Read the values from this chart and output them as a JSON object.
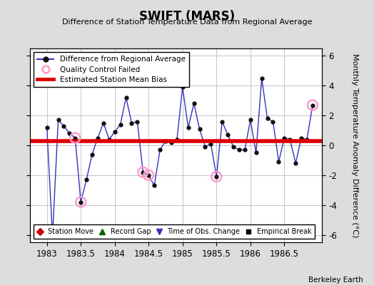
{
  "title": "SWIFT (MARS)",
  "subtitle": "Difference of Station Temperature Data from Regional Average",
  "ylabel": "Monthly Temperature Anomaly Difference (°C)",
  "credit": "Berkeley Earth",
  "xlim": [
    1982.75,
    1987.05
  ],
  "ylim": [
    -6.5,
    6.5
  ],
  "xticks": [
    1983,
    1983.5,
    1984,
    1984.5,
    1985,
    1985.5,
    1986,
    1986.5
  ],
  "yticks": [
    -6,
    -4,
    -2,
    0,
    2,
    4,
    6
  ],
  "mean_bias": 0.3,
  "line_color": "#3333bb",
  "marker_color": "#111111",
  "bias_color": "#dd0000",
  "qc_color": "#ff99cc",
  "background_color": "#dddddd",
  "plot_bg_color": "#ffffff",
  "x_data": [
    1983.0,
    1983.083,
    1983.167,
    1983.25,
    1983.333,
    1983.417,
    1983.5,
    1983.583,
    1983.667,
    1983.75,
    1983.833,
    1983.917,
    1984.0,
    1984.083,
    1984.167,
    1984.25,
    1984.333,
    1984.417,
    1984.5,
    1984.583,
    1984.667,
    1984.75,
    1984.833,
    1984.917,
    1985.0,
    1985.083,
    1985.167,
    1985.25,
    1985.333,
    1985.417,
    1985.5,
    1985.583,
    1985.667,
    1985.75,
    1985.833,
    1985.917,
    1986.0,
    1986.083,
    1986.167,
    1986.25,
    1986.333,
    1986.417,
    1986.5,
    1986.583,
    1986.667,
    1986.75,
    1986.833,
    1986.917
  ],
  "y_data": [
    1.2,
    -6.1,
    1.7,
    1.3,
    0.8,
    0.5,
    -3.8,
    -2.3,
    -0.6,
    0.5,
    1.5,
    0.4,
    0.9,
    1.4,
    3.2,
    1.5,
    1.6,
    -1.8,
    -2.0,
    -2.7,
    -0.3,
    0.3,
    0.2,
    0.4,
    3.9,
    1.2,
    2.8,
    1.1,
    -0.1,
    0.1,
    -2.1,
    1.6,
    0.7,
    -0.1,
    -0.3,
    -0.3,
    1.7,
    -0.5,
    4.5,
    1.8,
    1.6,
    -1.1,
    0.5,
    0.4,
    -1.2,
    0.5,
    0.4,
    2.7
  ],
  "qc_failed_x": [
    1983.417,
    1983.5,
    1984.417,
    1984.5,
    1985.5,
    1986.917
  ],
  "qc_failed_y": [
    0.5,
    -3.8,
    -1.8,
    -2.0,
    -2.1,
    2.7
  ]
}
